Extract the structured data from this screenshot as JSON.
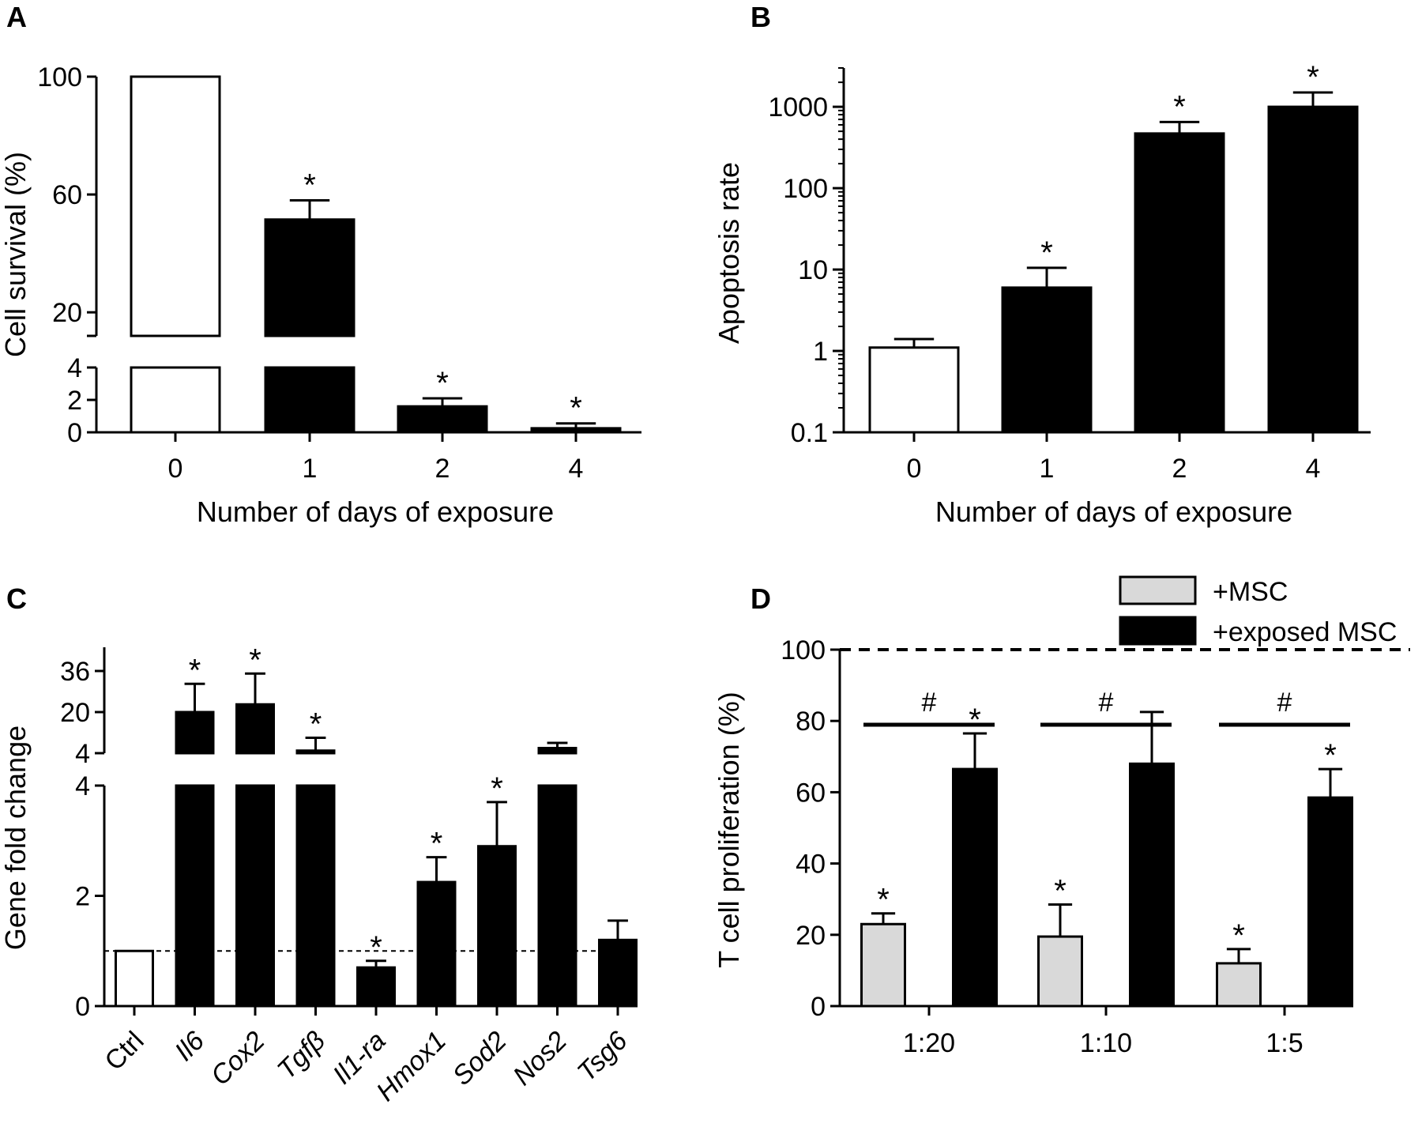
{
  "colors": {
    "filled": "#000000",
    "open": "#ffffff",
    "gray": "#d9d9d9",
    "stroke": "#000000"
  },
  "chart_data": [
    {
      "panel": "A",
      "type": "bar",
      "xlabel": "Number of days of exposure",
      "ylabel": "Cell survival (%)",
      "categories": [
        "0",
        "1",
        "2",
        "4"
      ],
      "values": [
        100,
        51.5,
        1.6,
        0.25
      ],
      "errors": [
        0,
        6.5,
        0.5,
        0.3
      ],
      "fills": [
        "open",
        "filled",
        "filled",
        "filled"
      ],
      "significance": [
        "",
        "*",
        "*",
        "*"
      ],
      "broken_axis": {
        "lower": [
          0,
          4
        ],
        "upper": [
          12,
          100
        ]
      },
      "yticks_lower": [
        "0",
        "2",
        "4"
      ],
      "yticks_upper": [
        "20",
        "60",
        "100"
      ]
    },
    {
      "panel": "B",
      "type": "bar",
      "xlabel": "Number of days of exposure",
      "ylabel": "Apoptosis rate",
      "yscale": "log",
      "ylim": [
        0.1,
        3000
      ],
      "categories": [
        "0",
        "1",
        "2",
        "4"
      ],
      "values": [
        1.1,
        6,
        470,
        1000
      ],
      "errors_upper": [
        1.4,
        10.5,
        650,
        1500
      ],
      "fills": [
        "open",
        "filled",
        "filled",
        "filled"
      ],
      "significance": [
        "",
        "*",
        "*",
        "*"
      ],
      "yticks": [
        "0.1",
        "1",
        "10",
        "100",
        "1000"
      ]
    },
    {
      "panel": "C",
      "type": "bar",
      "ylabel": "Gene fold change",
      "reference_line": 1,
      "categories": [
        "Ctrl",
        "Il6",
        "Cox2",
        "Tgfβ",
        "Il1-ra",
        "Hmox1",
        "Sod2",
        "Nos2",
        "Tsg6"
      ],
      "values": [
        1.0,
        20,
        23,
        5,
        0.7,
        2.25,
        2.9,
        6,
        1.2
      ],
      "errors_upper": [
        0,
        31,
        35,
        10,
        0.82,
        2.7,
        3.7,
        8,
        1.55
      ],
      "fills": [
        "open",
        "filled",
        "filled",
        "filled",
        "filled",
        "filled",
        "filled",
        "filled",
        "filled"
      ],
      "significance": [
        "",
        "*",
        "*",
        "*",
        "*",
        "*",
        "*",
        "",
        ""
      ],
      "broken_axis": {
        "lower": [
          0,
          4
        ],
        "upper": [
          4,
          36
        ]
      },
      "yticks_lower": [
        "0",
        "2",
        "4"
      ],
      "yticks_upper": [
        "4",
        "20",
        "36"
      ]
    },
    {
      "panel": "D",
      "type": "bar",
      "ylabel": "T cell proliferation (%)",
      "ylim": [
        0,
        100
      ],
      "yticks": [
        "0",
        "20",
        "40",
        "60",
        "80",
        "100"
      ],
      "reference_line": 100,
      "categories": [
        "1:20",
        "1:10",
        "1:5"
      ],
      "series": [
        {
          "name": "+MSC",
          "color": "gray",
          "values": [
            23,
            19.5,
            12
          ],
          "errors": [
            3,
            9,
            4
          ],
          "significance": [
            "*",
            "*",
            "*"
          ]
        },
        {
          "name": "+exposed MSC",
          "color": "filled",
          "values": [
            66.5,
            68,
            58.5
          ],
          "errors": [
            10,
            14.5,
            8
          ],
          "significance": [
            "*",
            "",
            "*"
          ]
        }
      ],
      "between_group_marker": "#",
      "legend": "top-right"
    }
  ]
}
